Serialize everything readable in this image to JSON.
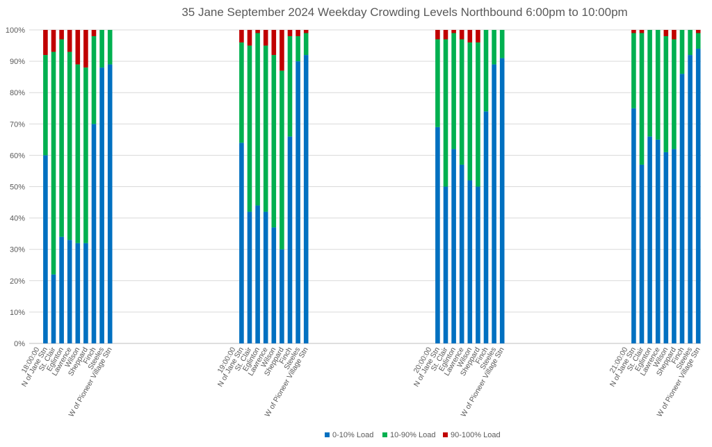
{
  "chart_data": {
    "type": "bar",
    "stacked": true,
    "title": "35 Jane September 2024 Weekday Crowding Levels Northbound 6:00pm to 10:00pm",
    "xlabel": "",
    "ylabel": "",
    "ylim": [
      0,
      100
    ],
    "yticks": [
      "0%",
      "10%",
      "20%",
      "30%",
      "40%",
      "50%",
      "60%",
      "70%",
      "80%",
      "90%",
      "100%"
    ],
    "grid": true,
    "legend_position": "bottom",
    "colors": [
      "#0070c0",
      "#00b050",
      "#c00000"
    ],
    "groups": [
      {
        "categories": [
          "18:00:00",
          "N of Jane Stn",
          "St. Clair",
          "Eglinton",
          "Lawrence",
          "Wilson",
          "Sheppard",
          "Finch",
          "Steeles",
          "W of Pioneer Village Stn"
        ],
        "series": [
          {
            "name": "0-10% Load",
            "values": [
              null,
              60,
              22,
              34,
              33,
              32,
              32,
              70,
              88,
              89
            ]
          },
          {
            "name": "10-90% Load",
            "values": [
              null,
              32,
              71,
              63,
              60,
              57,
              56,
              28,
              12,
              11
            ]
          },
          {
            "name": "90-100% Load",
            "values": [
              null,
              8,
              7,
              3,
              7,
              11,
              12,
              2,
              0,
              0
            ]
          }
        ]
      },
      {
        "categories": [
          "19:00:00",
          "N of Jane Stn",
          "St. Clair",
          "Eglinton",
          "Lawrence",
          "Wilson",
          "Sheppard",
          "Finch",
          "Steeles",
          "W of Pioneer Village Stn"
        ],
        "series": [
          {
            "name": "0-10% Load",
            "values": [
              null,
              64,
              42,
              44,
              42,
              37,
              30,
              66,
              90,
              92
            ]
          },
          {
            "name": "10-90% Load",
            "values": [
              null,
              32,
              53,
              55,
              53,
              55,
              57,
              32,
              8,
              7
            ]
          },
          {
            "name": "90-100% Load",
            "values": [
              null,
              4,
              5,
              1,
              5,
              8,
              13,
              2,
              2,
              1
            ]
          }
        ]
      },
      {
        "categories": [
          "20:00:00",
          "N of Jane Stn",
          "St. Clair",
          "Eglinton",
          "Lawrence",
          "Wilson",
          "Sheppard",
          "Finch",
          "Steeles",
          "W of Pioneer Village Stn"
        ],
        "series": [
          {
            "name": "0-10% Load",
            "values": [
              null,
              69,
              50,
              62,
              57,
              52,
              50,
              74,
              89,
              91
            ]
          },
          {
            "name": "10-90% Load",
            "values": [
              null,
              28,
              47,
              37,
              40,
              44,
              46,
              26,
              11,
              9
            ]
          },
          {
            "name": "90-100% Load",
            "values": [
              null,
              3,
              3,
              1,
              3,
              4,
              4,
              0,
              0,
              0
            ]
          }
        ]
      },
      {
        "categories": [
          "21:00:00",
          "N of Jane Stn",
          "St. Clair",
          "Eglinton",
          "Lawrence",
          "Wilson",
          "Sheppard",
          "Finch",
          "Steeles",
          "W of Pioneer Village Stn"
        ],
        "series": [
          {
            "name": "0-10% Load",
            "values": [
              null,
              75,
              57,
              66,
              65,
              61,
              62,
              86,
              92,
              94
            ]
          },
          {
            "name": "10-90% Load",
            "values": [
              null,
              24,
              42,
              34,
              35,
              37,
              35,
              14,
              8,
              5
            ]
          },
          {
            "name": "90-100% Load",
            "values": [
              null,
              1,
              1,
              0,
              0,
              2,
              3,
              0,
              0,
              1
            ]
          }
        ]
      }
    ],
    "legend": [
      "0-10% Load",
      "10-90% Load",
      "90-100% Load"
    ]
  }
}
